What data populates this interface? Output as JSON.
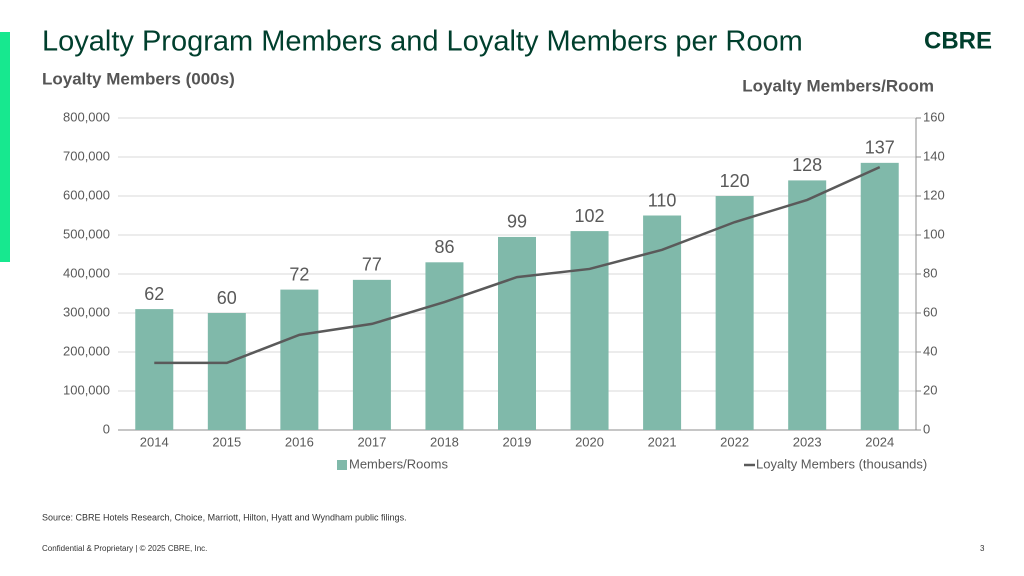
{
  "header": {
    "title": "Loyalty Program Members and Loyalty Members per Room",
    "logo": "CBRE"
  },
  "chart_data": {
    "type": "combo",
    "y_label": "Loyalty Members (000s)",
    "y2_label": "Loyalty Members/Room",
    "categories": [
      "2014",
      "2015",
      "2016",
      "2017",
      "2018",
      "2019",
      "2020",
      "2021",
      "2022",
      "2023",
      "2024"
    ],
    "series": [
      {
        "name": "Members/Rooms",
        "type": "bar",
        "axis": "y2",
        "color": "#80b9aa",
        "values": [
          62,
          60,
          72,
          77,
          86,
          99,
          102,
          110,
          120,
          128,
          137
        ]
      },
      {
        "name": "Loyalty Members (thousands)",
        "type": "line",
        "axis": "y",
        "color": "#5a5a5a",
        "values": [
          172000,
          172000,
          244000,
          272000,
          328000,
          392000,
          413000,
          462000,
          533000,
          590000,
          674000
        ]
      }
    ],
    "ylim": [
      0,
      800000
    ],
    "yticks": [
      0,
      {
        "value": 100000,
        "label": "100,000"
      },
      {
        "value": 200000,
        "label": "200,000"
      },
      {
        "value": 300000,
        "label": "300,000"
      },
      {
        "value": 400000,
        "label": "400,000"
      },
      {
        "value": 500000,
        "label": "500,000"
      },
      {
        "value": 600000,
        "label": "600,000"
      },
      {
        "value": 700000,
        "label": "700,000"
      },
      {
        "value": 800000,
        "label": "800,000"
      }
    ],
    "y2lim": [
      0,
      160
    ],
    "y2ticks": [
      0,
      20,
      40,
      60,
      80,
      100,
      120,
      140,
      160
    ],
    "grid": true,
    "legend": "bottom"
  },
  "source": "Source: CBRE Hotels Research, Choice, Marriott, Hilton, Hyatt and Wyndham public filings.",
  "footer": {
    "text": "Confidential & Proprietary | © 2025 CBRE, Inc.",
    "page": "3"
  }
}
